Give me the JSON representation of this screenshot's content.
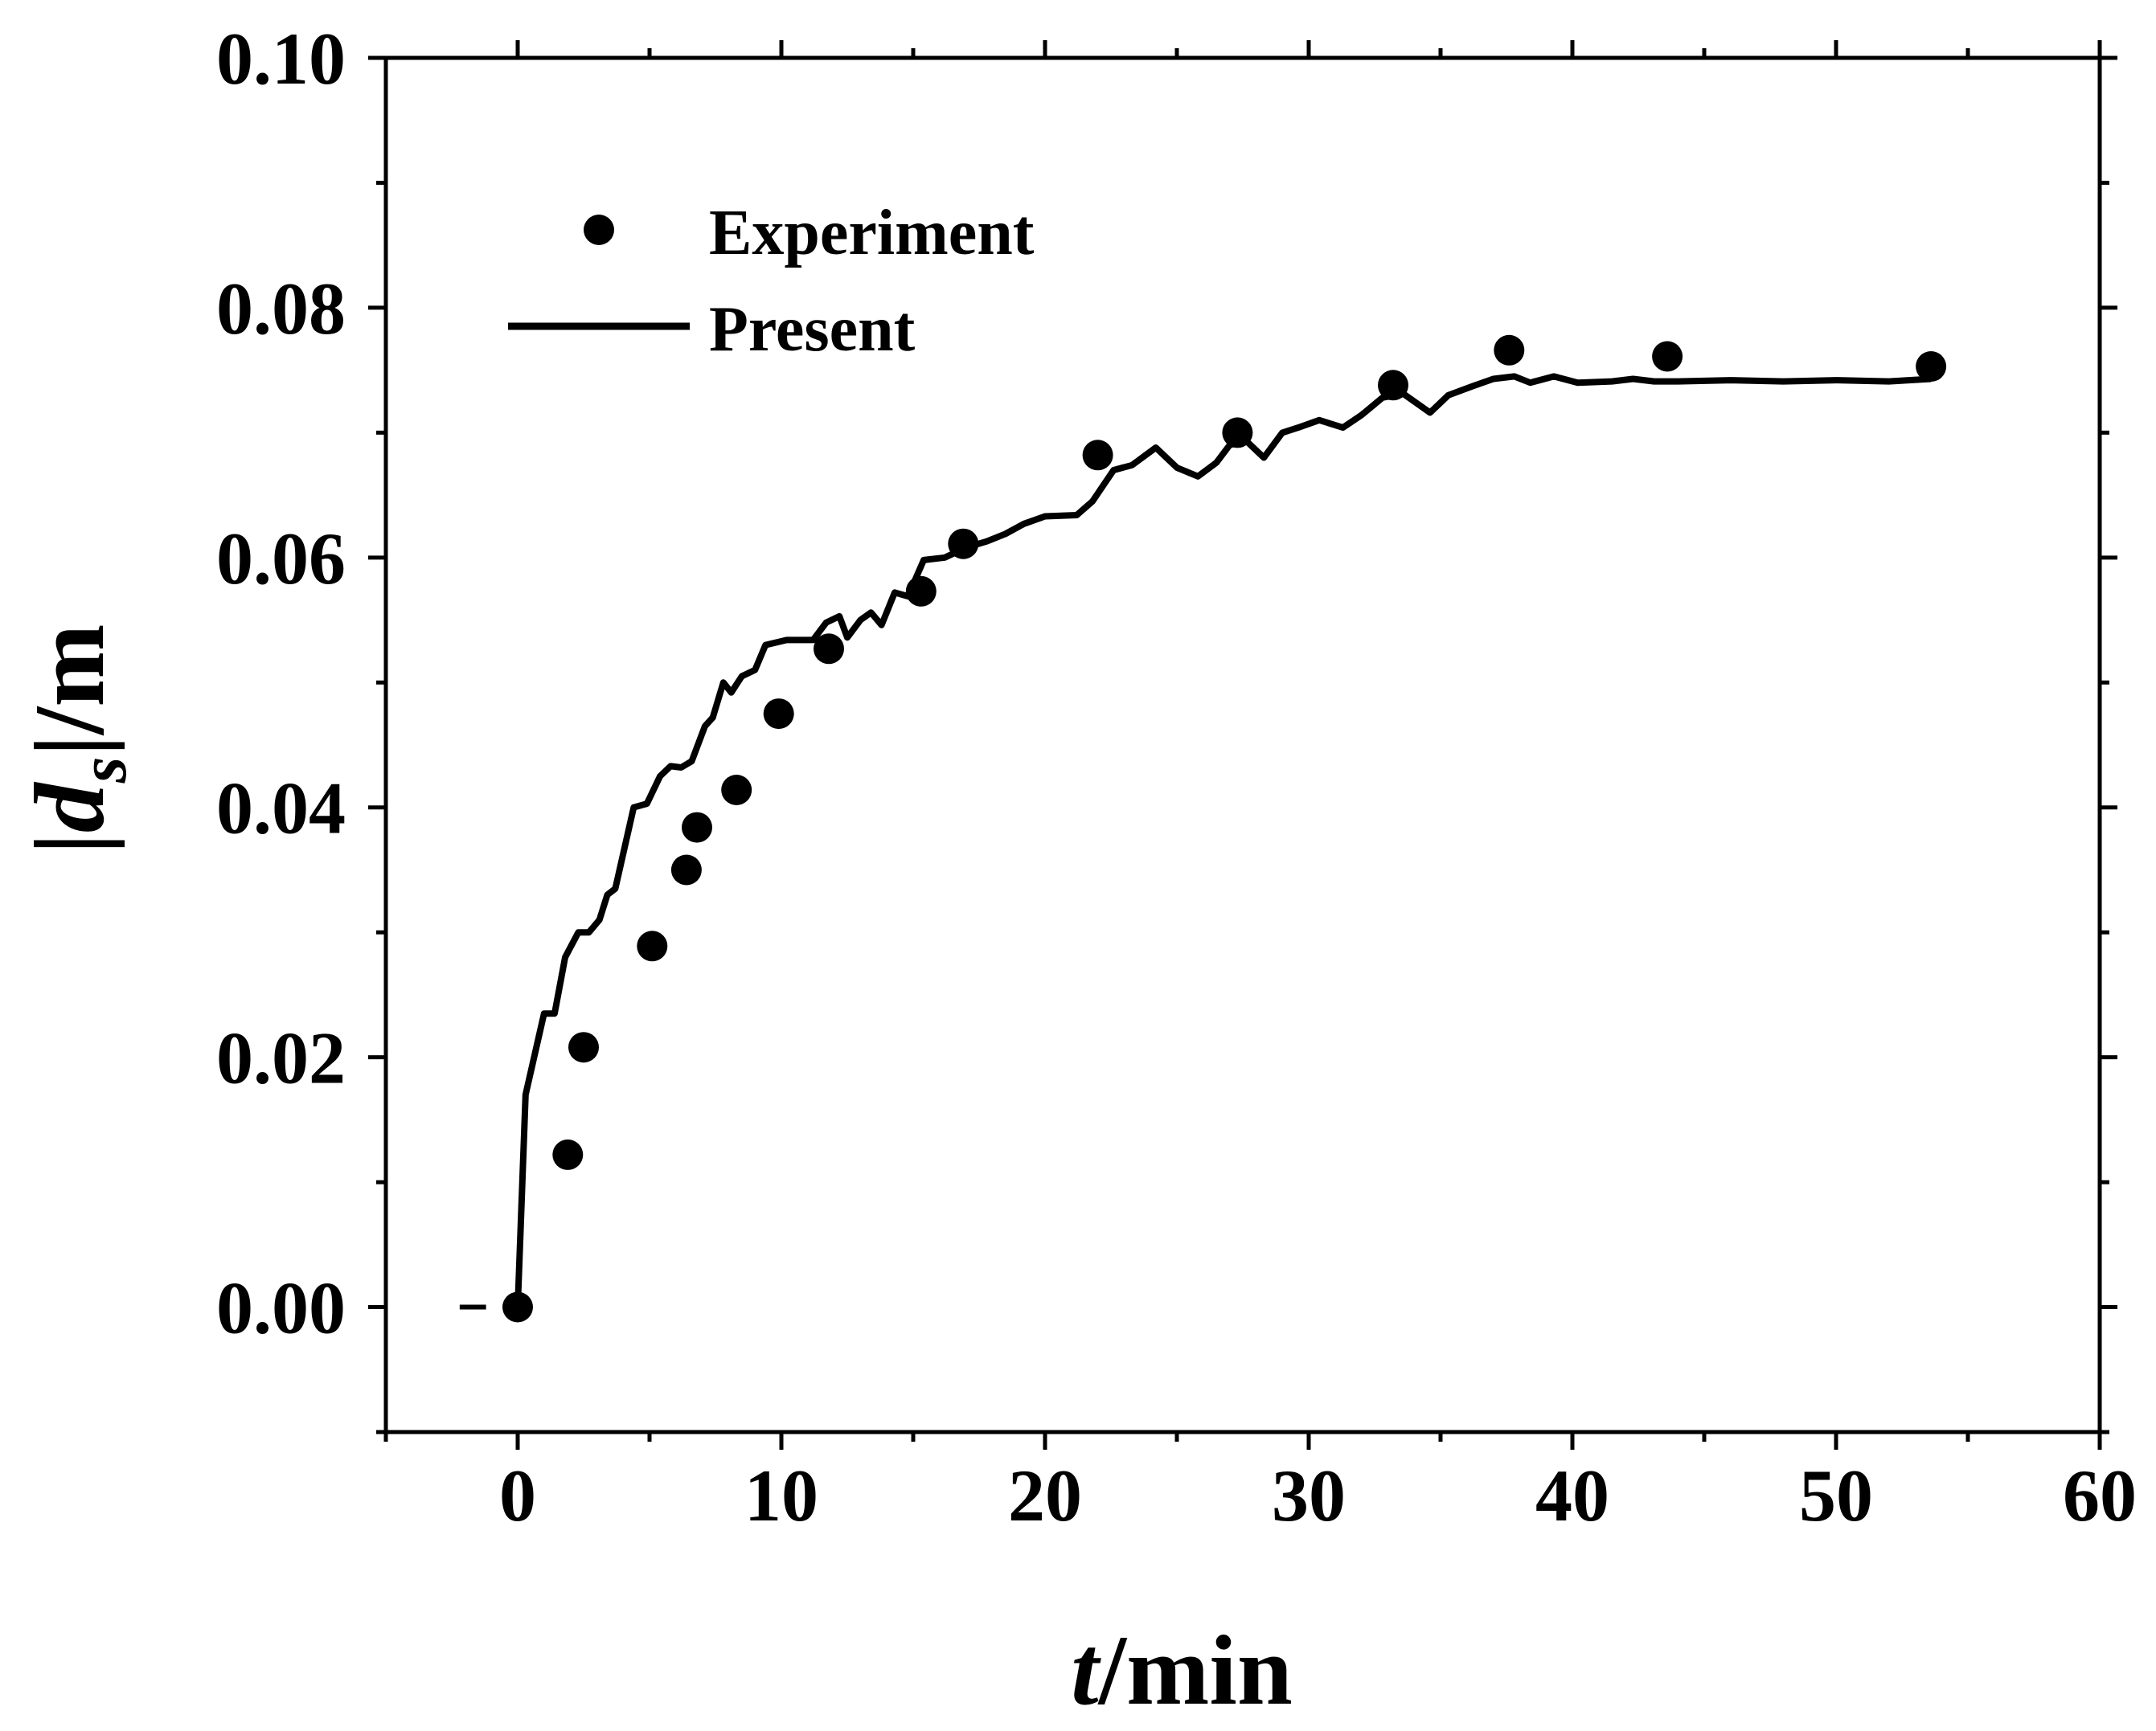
{
  "chart_data": {
    "type": "scatter+line",
    "title": "",
    "xlabel_italic": "t",
    "xlabel_rest": "/min",
    "ylabel_pre": "|",
    "ylabel_italic": "d",
    "ylabel_sub": "s",
    "ylabel_post": "|/m",
    "xlim": [
      -5,
      60
    ],
    "ylim": [
      -0.01,
      0.1
    ],
    "xticks": [
      0,
      10,
      20,
      30,
      40,
      50,
      60
    ],
    "xtick_labels": [
      "0",
      "10",
      "20",
      "30",
      "40",
      "50",
      "60"
    ],
    "yticks": [
      0.0,
      0.02,
      0.04,
      0.06,
      0.08,
      0.1
    ],
    "ytick_labels": [
      "0.00",
      "0.02",
      "0.04",
      "0.06",
      "0.08",
      "0.10"
    ],
    "legend_position": "top-left",
    "series": [
      {
        "name": "Experiment",
        "kind": "scatter",
        "color": "#000000",
        "points": [
          [
            0.0,
            0.0
          ],
          [
            1.9,
            0.0122
          ],
          [
            2.5,
            0.0208
          ],
          [
            5.1,
            0.0289
          ],
          [
            6.4,
            0.035
          ],
          [
            6.8,
            0.0384
          ],
          [
            8.3,
            0.0414
          ],
          [
            9.9,
            0.0475
          ],
          [
            11.8,
            0.0527
          ],
          [
            15.3,
            0.0573
          ],
          [
            16.9,
            0.0611
          ],
          [
            22.0,
            0.0682
          ],
          [
            27.3,
            0.07
          ],
          [
            33.2,
            0.0738
          ],
          [
            37.6,
            0.0766
          ],
          [
            43.6,
            0.0761
          ],
          [
            53.6,
            0.0753
          ]
        ]
      },
      {
        "name": "Present",
        "kind": "line",
        "color": "#000000",
        "points": [
          [
            0.0,
            0.0
          ],
          [
            0.3,
            0.017
          ],
          [
            1.0,
            0.0235
          ],
          [
            1.4,
            0.0235
          ],
          [
            1.8,
            0.028
          ],
          [
            2.3,
            0.03
          ],
          [
            2.7,
            0.03
          ],
          [
            3.1,
            0.031
          ],
          [
            3.4,
            0.033
          ],
          [
            3.7,
            0.0335
          ],
          [
            4.4,
            0.04
          ],
          [
            4.9,
            0.0403
          ],
          [
            5.4,
            0.0425
          ],
          [
            5.8,
            0.0433
          ],
          [
            6.2,
            0.0432
          ],
          [
            6.6,
            0.0437
          ],
          [
            7.1,
            0.0465
          ],
          [
            7.4,
            0.0472
          ],
          [
            7.8,
            0.05
          ],
          [
            8.1,
            0.0492
          ],
          [
            8.5,
            0.0505
          ],
          [
            9.0,
            0.051
          ],
          [
            9.4,
            0.053
          ],
          [
            10.2,
            0.0534
          ],
          [
            11.2,
            0.0534
          ],
          [
            11.7,
            0.0548
          ],
          [
            12.2,
            0.0553
          ],
          [
            12.5,
            0.0536
          ],
          [
            13.0,
            0.055
          ],
          [
            13.4,
            0.0556
          ],
          [
            13.8,
            0.0546
          ],
          [
            14.3,
            0.0572
          ],
          [
            14.8,
            0.0569
          ],
          [
            15.4,
            0.0598
          ],
          [
            16.2,
            0.06
          ],
          [
            17.0,
            0.0608
          ],
          [
            17.8,
            0.0613
          ],
          [
            18.5,
            0.0619
          ],
          [
            19.2,
            0.0627
          ],
          [
            20.0,
            0.0633
          ],
          [
            21.2,
            0.0634
          ],
          [
            21.8,
            0.0645
          ],
          [
            22.6,
            0.067
          ],
          [
            23.3,
            0.0674
          ],
          [
            24.2,
            0.0688
          ],
          [
            25.0,
            0.0672
          ],
          [
            25.8,
            0.0665
          ],
          [
            26.5,
            0.0676
          ],
          [
            27.0,
            0.069
          ],
          [
            27.6,
            0.0694
          ],
          [
            28.3,
            0.068
          ],
          [
            29.0,
            0.07
          ],
          [
            29.6,
            0.0704
          ],
          [
            30.4,
            0.071
          ],
          [
            31.3,
            0.0704
          ],
          [
            32.0,
            0.0714
          ],
          [
            32.8,
            0.0728
          ],
          [
            33.6,
            0.0731
          ],
          [
            34.6,
            0.0716
          ],
          [
            35.3,
            0.073
          ],
          [
            36.2,
            0.0737
          ],
          [
            37.0,
            0.0743
          ],
          [
            37.8,
            0.0745
          ],
          [
            38.4,
            0.074
          ],
          [
            39.3,
            0.0745
          ],
          [
            40.2,
            0.074
          ],
          [
            41.5,
            0.0741
          ],
          [
            42.3,
            0.0743
          ],
          [
            43.1,
            0.0741
          ],
          [
            44.0,
            0.0741
          ],
          [
            46.0,
            0.0742
          ],
          [
            48.0,
            0.0741
          ],
          [
            50.0,
            0.0742
          ],
          [
            52.0,
            0.0741
          ],
          [
            53.6,
            0.0743
          ]
        ]
      }
    ]
  }
}
